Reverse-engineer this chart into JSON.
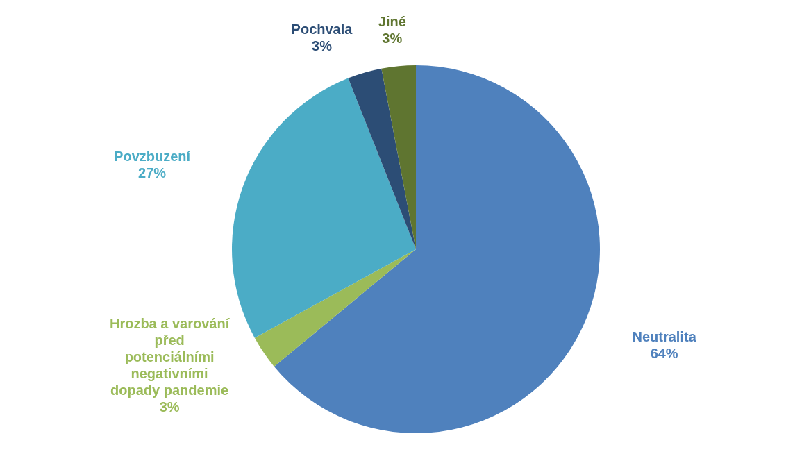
{
  "chart_data": {
    "type": "pie",
    "categories": [
      "Neutralita",
      "Hrozba a varování před potenciálními negativními dopady pandemie",
      "Povzbuzení",
      "Pochvala",
      "Jiné"
    ],
    "values": [
      64,
      3,
      27,
      3,
      3
    ],
    "value_labels": [
      "64%",
      "3%",
      "27%",
      "3%",
      "3%"
    ],
    "colors": [
      "#4f81bd",
      "#9bbb59",
      "#4bacc6",
      "#2c4d75",
      "#5f7530"
    ]
  }
}
